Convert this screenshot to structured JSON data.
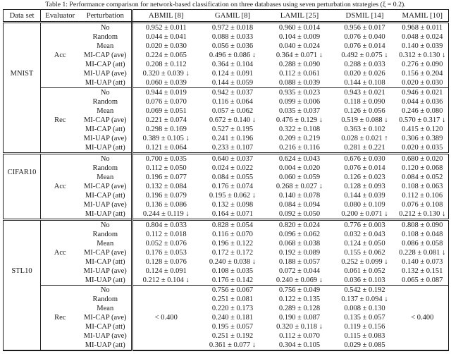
{
  "title": "Table 1: Performance comparison for network-based classification on three databases using seven perturbation strategies (ξ = 0.2).",
  "table": {
    "headers": [
      "Data set",
      "Evaluator",
      "Perturbation",
      "ABMIL [8]",
      "GAMIL [8]",
      "LAMIL [25]",
      "DSMIL [14]",
      "MAMIL [10]"
    ],
    "sections": [
      {
        "dataset": "MNIST",
        "blocks": [
          {
            "evaluator": "Acc",
            "rows": [
              {
                "perturbation": "No",
                "values": [
                  "0.952 ± 0.011",
                  "0.972 ± 0.018",
                  "0.960 ± 0.014",
                  "0.956 ± 0.017",
                  "0.968 ± 0.011"
                ]
              },
              {
                "perturbation": "Random",
                "values": [
                  "0.044 ± 0.041",
                  "0.088 ± 0.033",
                  "0.104 ± 0.009",
                  "0.076 ± 0.040",
                  "0.048 ± 0.024"
                ]
              },
              {
                "perturbation": "Mean",
                "values": [
                  "0.020 ± 0.030",
                  "0.056 ± 0.036",
                  "0.040 ± 0.024",
                  "0.076 ± 0.014",
                  "0.140 ± 0.039"
                ]
              },
              {
                "perturbation": "MI-CAP (ave)",
                "values": [
                  "0.224 ± 0.065",
                  "0.496 ± 0.086 ↓",
                  "0.364 ± 0.071 ↓",
                  "0.492 ± 0.075 ↓",
                  "0.312 ± 0.130 ↓"
                ]
              },
              {
                "perturbation": "MI-CAP (att)",
                "values": [
                  "0.208 ± 0.112",
                  "0.364 ± 0.104",
                  "0.288 ± 0.090",
                  "0.288 ± 0.033",
                  "0.276 ± 0.090"
                ]
              },
              {
                "perturbation": "MI-UAP (ave)",
                "values": [
                  "0.320 ± 0.039 ↓",
                  "0.124 ± 0.091",
                  "0.112 ± 0.061",
                  "0.020 ± 0.026",
                  "0.156 ± 0.204"
                ]
              },
              {
                "perturbation": "MI-UAP (att)",
                "values": [
                  "0.060 ± 0.039",
                  "0.144 ± 0.059",
                  "0.088 ± 0.039",
                  "0.144 ± 0.108",
                  "0.020 ± 0.030"
                ]
              }
            ]
          },
          {
            "evaluator": "Rec",
            "rows": [
              {
                "perturbation": "No",
                "values": [
                  "0.944 ± 0.019",
                  "0.942 ± 0.037",
                  "0.935 ± 0.023",
                  "0.943 ± 0.021",
                  "0.946 ± 0.021"
                ]
              },
              {
                "perturbation": "Random",
                "values": [
                  "0.076 ± 0.070",
                  "0.116 ± 0.064",
                  "0.099 ± 0.006",
                  "0.118 ± 0.090",
                  "0.044 ± 0.036"
                ]
              },
              {
                "perturbation": "Mean",
                "values": [
                  "0.069 ± 0.051",
                  "0.057 ± 0.062",
                  "0.035 ± 0.037",
                  "0.126 ± 0.056",
                  "0.246 ± 0.080"
                ]
              },
              {
                "perturbation": "MI-CAP (ave)",
                "values": [
                  "0.221 ± 0.074",
                  "0.672 ± 0.140 ↓",
                  "0.476 ± 0.129 ↓",
                  "0.519 ± 0.088 ↓",
                  "0.570 ± 0.317 ↓"
                ]
              },
              {
                "perturbation": "MI-CAP (att)",
                "values": [
                  "0.298 ± 0.169",
                  "0.527 ± 0.195",
                  "0.322 ± 0.108",
                  "0.363 ± 0.102",
                  "0.415 ± 0.120"
                ]
              },
              {
                "perturbation": "MI-UAP (ave)",
                "values": [
                  "0.389 ± 0.105 ↓",
                  "0.241 ± 0.196",
                  "0.209 ± 0.219",
                  "0.028 ± 0.021 ↑",
                  "0.306 ± 0.389"
                ]
              },
              {
                "perturbation": "MI-UAP (att)",
                "values": [
                  "0.121 ± 0.064",
                  "0.233 ± 0.107",
                  "0.216 ± 0.116",
                  "0.281 ± 0.221",
                  "0.020 ± 0.035"
                ]
              }
            ]
          }
        ]
      },
      {
        "dataset": "CIFAR10",
        "blocks": [
          {
            "evaluator": "Acc",
            "rows": [
              {
                "perturbation": "No",
                "values": [
                  "0.700 ± 0.035",
                  "0.640 ± 0.037",
                  "0.624 ± 0.043",
                  "0.676 ± 0.030",
                  "0.680 ± 0.020"
                ]
              },
              {
                "perturbation": "Random",
                "values": [
                  "0.112 ± 0.050",
                  "0.024 ± 0.022",
                  "0.004 ± 0.020",
                  "0.076 ± 0.014",
                  "0.120 ± 0.068"
                ]
              },
              {
                "perturbation": "Mean",
                "values": [
                  "0.196 ± 0.077",
                  "0.084 ± 0.055",
                  "0.060 ± 0.059",
                  "0.126 ± 0.023",
                  "0.084 ± 0.052"
                ]
              },
              {
                "perturbation": "MI-CAP (ave)",
                "values": [
                  "0.132 ± 0.084",
                  "0.176 ± 0.074",
                  "0.268 ± 0.027 ↓",
                  "0.128 ± 0.093",
                  "0.108 ± 0.063"
                ]
              },
              {
                "perturbation": "MI-CAP (att)",
                "values": [
                  "0.196 ± 0.079",
                  "0.195 ± 0.062 ↓",
                  "0.140 ± 0.078",
                  "0.144 ± 0.039",
                  "0.112 ± 0.106"
                ]
              },
              {
                "perturbation": "MI-UAP (ave)",
                "values": [
                  "0.136 ± 0.086",
                  "0.132 ± 0.098",
                  "0.084 ± 0.094",
                  "0.080 ± 0.109",
                  "0.076 ± 0.108"
                ]
              },
              {
                "perturbation": "MI-UAP (att)",
                "values": [
                  "0.244 ± 0.119 ↓",
                  "0.164 ± 0.071",
                  "0.092 ± 0.050",
                  "0.200 ± 0.071 ↓",
                  "0.212 ± 0.130 ↓"
                ]
              }
            ]
          }
        ]
      },
      {
        "dataset": "STL10",
        "blocks": [
          {
            "evaluator": "Acc",
            "rows": [
              {
                "perturbation": "No",
                "values": [
                  "0.804 ± 0.033",
                  "0.828 ± 0.054",
                  "0.820 ± 0.024",
                  "0.776 ± 0.003",
                  "0.808 ± 0.090"
                ]
              },
              {
                "perturbation": "Random",
                "values": [
                  "0.112 ± 0.018",
                  "0.116 ± 0.070",
                  "0.096 ± 0.062",
                  "0.032 ± 0.043",
                  "0.108 ± 0.048"
                ]
              },
              {
                "perturbation": "Mean",
                "values": [
                  "0.052 ± 0.076",
                  "0.196 ± 0.122",
                  "0.068 ± 0.038",
                  "0.124 ± 0.050",
                  "0.086 ± 0.058"
                ]
              },
              {
                "perturbation": "MI-CAP (ave)",
                "values": [
                  "0.176 ± 0.053",
                  "0.172 ± 0.172",
                  "0.192 ± 0.089",
                  "0.155 ± 0.062",
                  "0.228 ± 0.081 ↓"
                ]
              },
              {
                "perturbation": "MI-CAP (att)",
                "values": [
                  "0.128 ± 0.076",
                  "0.240 ± 0.038 ↓",
                  "0.188 ± 0.057",
                  "0.252 ± 0.099 ↓",
                  "0.140 ± 0.073"
                ]
              },
              {
                "perturbation": "MI-UAP (ave)",
                "values": [
                  "0.124 ± 0.091",
                  "0.108 ± 0.035",
                  "0.072 ± 0.044",
                  "0.061 ± 0.052",
                  "0.132 ± 0.151"
                ]
              },
              {
                "perturbation": "MI-UAP (att)",
                "values": [
                  "0.212 ± 0.104 ↓",
                  "0.176 ± 0.142",
                  "0.240 ± 0.069 ↓",
                  "0.036 ± 0.103",
                  "0.065 ± 0.087"
                ]
              }
            ]
          },
          {
            "evaluator": "Rec",
            "merged": [
              {
                "col": 0,
                "text": "< 0.400"
              },
              {
                "col": 4,
                "text": "< 0.400"
              }
            ],
            "rows": [
              {
                "perturbation": "No",
                "values": [
                  null,
                  "0.756 ± 0.067",
                  "0.756 ± 0.049",
                  "0.542 ± 0.192",
                  null
                ]
              },
              {
                "perturbation": "Random",
                "values": [
                  null,
                  "0.251 ± 0.081",
                  "0.122 ± 0.135",
                  "0.137 ± 0.094 ↓",
                  null
                ]
              },
              {
                "perturbation": "Mean",
                "values": [
                  null,
                  "0.220 ± 0.173",
                  "0.289 ± 0.128",
                  "0.008 ± 0.130",
                  null
                ]
              },
              {
                "perturbation": "MI-CAP (ave)",
                "values": [
                  null,
                  "0.240 ± 0.181",
                  "0.190 ± 0.087",
                  "0.135 ± 0.057",
                  null
                ]
              },
              {
                "perturbation": "MI-CAP (att)",
                "values": [
                  null,
                  "0.195 ± 0.057",
                  "0.320 ± 0.118 ↓",
                  "0.119 ± 0.156",
                  null
                ]
              },
              {
                "perturbation": "MI-UAP (ave)",
                "values": [
                  null,
                  "0.251 ± 0.192",
                  "0.112 ± 0.070",
                  "0.115 ± 0.083",
                  null
                ]
              },
              {
                "perturbation": "MI-UAP (att)",
                "values": [
                  null,
                  "0.361 ± 0.077 ↓",
                  "0.304 ± 0.105",
                  "0.029 ± 0.085",
                  null
                ]
              }
            ]
          }
        ]
      }
    ]
  }
}
